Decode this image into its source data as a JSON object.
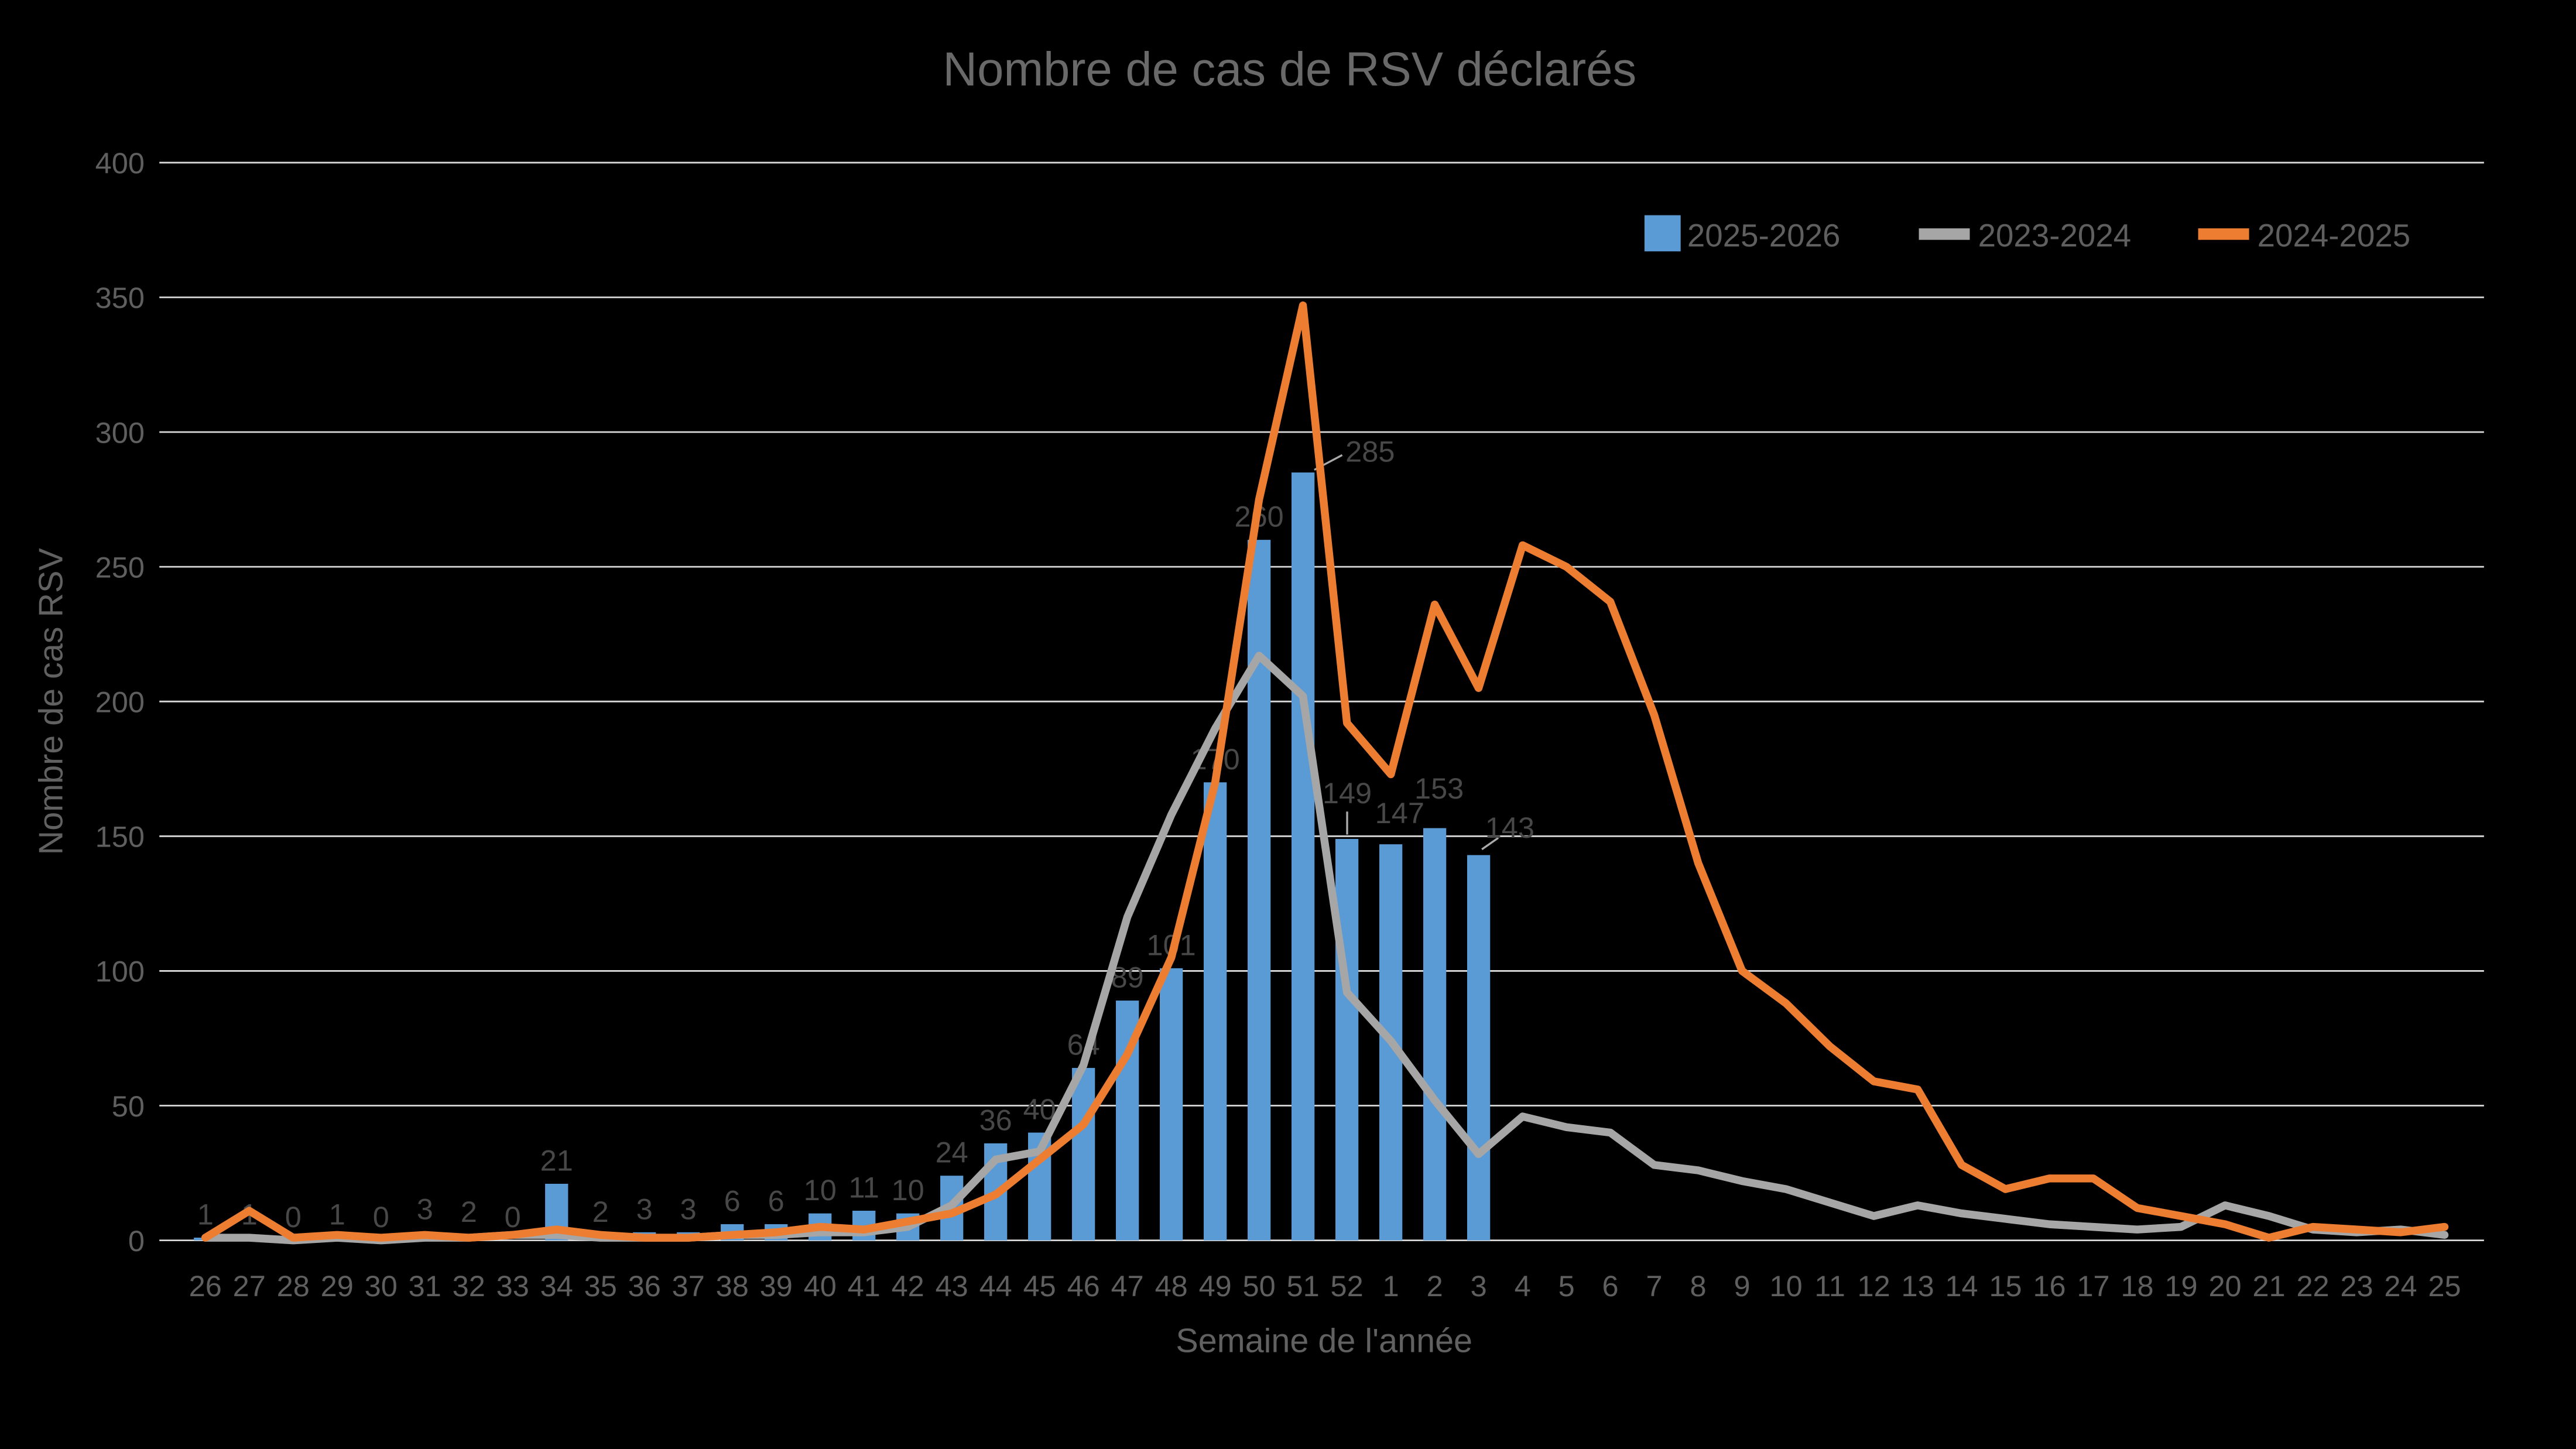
{
  "title": "Nombre de cas de RSV déclarés",
  "chart_data": {
    "type": "combo",
    "title": "Nombre de cas de RSV déclarés",
    "xlabel": "Semaine de l'année",
    "ylabel": "Nombre de cas RSV",
    "ylim": [
      0,
      400
    ],
    "ytick_step": 50,
    "grid": true,
    "legend_position": "top-right",
    "background": "#000000",
    "gridline_color": "#D9D9D9",
    "categories": [
      "26",
      "27",
      "28",
      "29",
      "30",
      "31",
      "32",
      "33",
      "34",
      "35",
      "36",
      "37",
      "38",
      "39",
      "40",
      "41",
      "42",
      "43",
      "44",
      "45",
      "46",
      "47",
      "48",
      "49",
      "50",
      "51",
      "52",
      "1",
      "2",
      "3",
      "4",
      "5",
      "6",
      "7",
      "8",
      "9",
      "10",
      "11",
      "12",
      "13",
      "14",
      "15",
      "16",
      "17",
      "18",
      "19",
      "20",
      "21",
      "22",
      "23",
      "24",
      "25"
    ],
    "series": [
      {
        "name": "2025-2026",
        "type": "bar",
        "color": "#5B9BD5",
        "values": [
          1,
          1,
          0,
          1,
          0,
          3,
          2,
          0,
          21,
          2,
          3,
          3,
          6,
          6,
          10,
          11,
          10,
          24,
          36,
          40,
          64,
          89,
          101,
          170,
          260,
          285,
          149,
          147,
          153,
          143,
          null,
          null,
          null,
          null,
          null,
          null,
          null,
          null,
          null,
          null,
          null,
          null,
          null,
          null,
          null,
          null,
          null,
          null,
          null,
          null,
          null,
          null
        ],
        "data_labels": true
      },
      {
        "name": "2023-2024",
        "type": "line",
        "color": "#A6A6A6",
        "values": [
          1,
          1,
          0,
          1,
          0,
          1,
          1,
          2,
          2,
          1,
          1,
          1,
          2,
          2,
          3,
          3,
          5,
          13,
          30,
          33,
          65,
          120,
          158,
          190,
          217,
          202,
          92,
          74,
          52,
          32,
          46,
          42,
          40,
          28,
          26,
          22,
          19,
          14,
          9,
          13,
          10,
          8,
          6,
          5,
          4,
          5,
          13,
          9,
          4,
          3,
          4,
          2
        ]
      },
      {
        "name": "2024-2025",
        "type": "line",
        "color": "#ED7D31",
        "values": [
          1,
          11,
          1,
          2,
          1,
          2,
          1,
          2,
          4,
          2,
          1,
          1,
          2,
          3,
          5,
          4,
          7,
          10,
          17,
          30,
          43,
          69,
          105,
          170,
          275,
          347,
          192,
          173,
          236,
          205,
          258,
          250,
          237,
          195,
          140,
          100,
          88,
          72,
          59,
          56,
          28,
          19,
          23,
          23,
          12,
          9,
          6,
          1,
          5,
          4,
          3,
          5
        ]
      }
    ]
  }
}
